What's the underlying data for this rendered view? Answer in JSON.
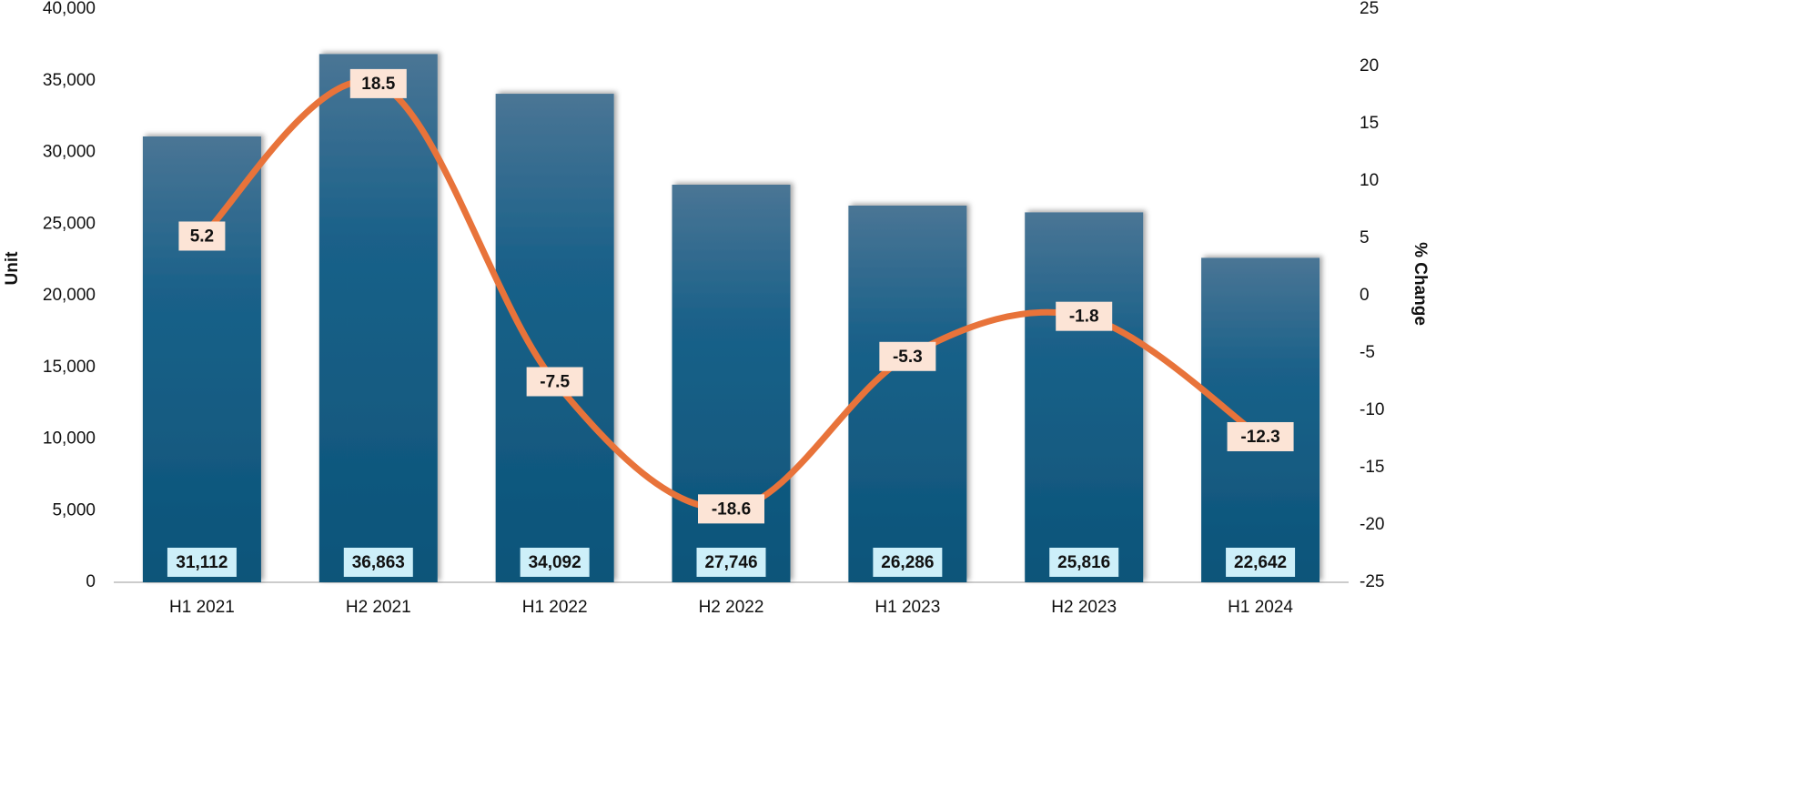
{
  "chart_data": {
    "type": "bar-line",
    "categories": [
      "H1 2021",
      "H2 2021",
      "H1 2022",
      "H2 2022",
      "H1 2023",
      "H2 2023",
      "H1 2024"
    ],
    "y_label": "Unit",
    "y2_label": "% Change",
    "series": [
      {
        "type": "bar",
        "color": "#0e5a80",
        "values": [
          31112,
          36863,
          34092,
          27746,
          26286,
          25816,
          22642
        ],
        "value_labels": [
          "31,112",
          "36,863",
          "34,092",
          "27,746",
          "26,286",
          "25,816",
          "22,642"
        ]
      },
      {
        "type": "line",
        "axis": "y2",
        "color": "#e8733a",
        "values": [
          5.2,
          18.5,
          -7.5,
          -18.6,
          -5.3,
          -1.8,
          -12.3
        ]
      }
    ],
    "ylim": [
      0,
      40000
    ],
    "yticks": [
      0,
      {
        "value": 5000,
        "label": "5,000"
      },
      {
        "value": 10000,
        "label": "10,000"
      },
      {
        "value": 15000,
        "label": "15,000"
      },
      {
        "value": 20000,
        "label": "20,000"
      },
      {
        "value": 25000,
        "label": "25,000"
      },
      {
        "value": 30000,
        "label": "30,000"
      },
      {
        "value": 35000,
        "label": "35,000"
      },
      {
        "value": 40000,
        "label": "40,000"
      }
    ],
    "y2lim": [
      -25,
      25
    ],
    "y2ticks": [
      -25,
      -20,
      -15,
      -10,
      -5,
      0,
      5,
      10,
      15,
      20,
      25
    ]
  }
}
